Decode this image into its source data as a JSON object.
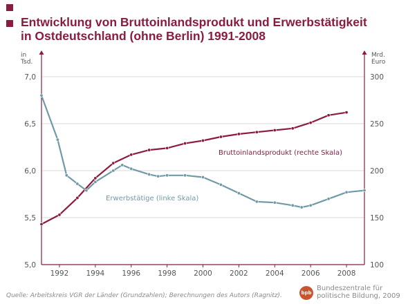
{
  "title_lines": [
    "Entwicklung von Bruttoinlandsprodukt und Erwerbstätigkeit",
    "in Ostdeutschland (ohne Berlin) 1991-2008"
  ],
  "source": "Quelle:  Arbeitskreis VGR der Länder (Grundzahlen); Berechnungen des Autors (Ragnitz).",
  "publisher": {
    "logo_text": "bpb",
    "line1": "Bundeszentrale für",
    "line2": "politische Bildung, 2009"
  },
  "colors": {
    "title": "#8c1c3f",
    "bip": "#8c1c3f",
    "erwerb": "#6f9aa6",
    "grid": "#d9d9d9",
    "axis": "#8c1c3f",
    "text": "#555555"
  },
  "chart_data": {
    "type": "line",
    "xlim": [
      1991,
      2009
    ],
    "x_ticks": [
      1992,
      1994,
      1996,
      1998,
      2000,
      2002,
      2004,
      2006,
      2008
    ],
    "left_axis": {
      "unit": "in Tsd.",
      "ylim": [
        5.0,
        7.0
      ],
      "ticks": [
        "5,0",
        "5,5",
        "6,0",
        "6,5",
        "7,0"
      ],
      "tick_values": [
        5.0,
        5.5,
        6.0,
        6.5,
        7.0
      ]
    },
    "right_axis": {
      "unit": "Mrd. Euro",
      "ylim": [
        100,
        300
      ],
      "ticks": [
        "100",
        "150",
        "200",
        "250",
        "300"
      ],
      "tick_values": [
        100,
        150,
        200,
        250,
        300
      ]
    },
    "grid": true,
    "series": [
      {
        "name": "Bruttoinlandsprodukt (rechte Skala)",
        "axis": "right",
        "color": "#8c1c3f",
        "x": [
          1991,
          1992,
          1993,
          1994,
          1995,
          1996,
          1997,
          1998,
          1999,
          2000,
          2001,
          2002,
          2003,
          2004,
          2005,
          2006,
          2007,
          2008
        ],
        "values": [
          143,
          153,
          171,
          192,
          208,
          217,
          222,
          224,
          229,
          232,
          236,
          239,
          241,
          243,
          245,
          251,
          259,
          262
        ]
      },
      {
        "name": "Erwerbstätige (linke Skala)",
        "axis": "left",
        "color": "#6f9aa6",
        "x": [
          1991,
          1991.9,
          1992.4,
          1993,
          1993.5,
          1994,
          1995,
          1995.5,
          1996,
          1997,
          1997.5,
          1998,
          1999,
          2000,
          2001,
          2002,
          2003,
          2004,
          2005,
          2005.5,
          2006,
          2007,
          2008,
          2009
        ],
        "values": [
          6.8,
          6.33,
          5.95,
          5.86,
          5.79,
          5.88,
          6.0,
          6.06,
          6.02,
          5.96,
          5.94,
          5.95,
          5.95,
          5.93,
          5.85,
          5.76,
          5.67,
          5.66,
          5.63,
          5.61,
          5.63,
          5.7,
          5.77,
          5.79
        ]
      }
    ]
  }
}
